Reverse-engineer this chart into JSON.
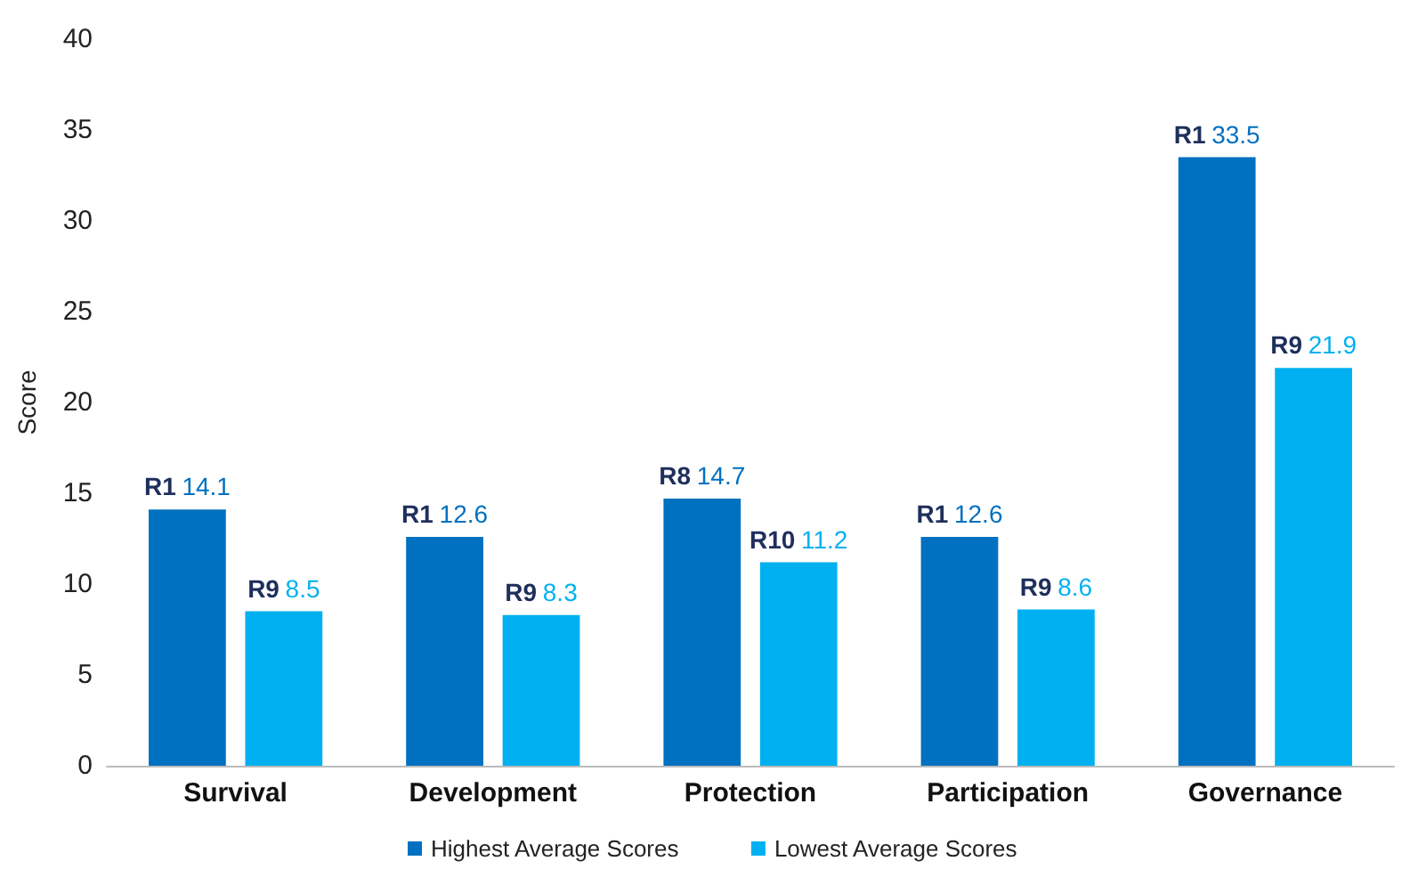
{
  "chart_data": {
    "type": "bar",
    "ylabel": "Score",
    "categories": [
      "Survival",
      "Development",
      "Protection",
      "Participation",
      "Governance"
    ],
    "series": [
      {
        "name": "Highest Average Scores",
        "color": "#0070c0",
        "values": [
          14.1,
          12.6,
          14.7,
          12.6,
          33.5
        ],
        "value_labels": [
          "R1 14.1",
          "R1 12.6",
          "R8 14.7",
          "R1 12.6",
          "R1 33.5"
        ]
      },
      {
        "name": "Lowest Average Scores",
        "color": "#00b0f0",
        "values": [
          8.5,
          8.3,
          11.2,
          8.6,
          21.9
        ],
        "value_labels": [
          "R9 8.5",
          "R9 8.3",
          "R10 11.2",
          "R9 8.6",
          "R9 21.9"
        ]
      }
    ],
    "ylim": [
      0,
      40
    ],
    "yticks": [
      0,
      5,
      10,
      15,
      20,
      25,
      30,
      35,
      40
    ],
    "grid": false,
    "legend": "bottom"
  }
}
